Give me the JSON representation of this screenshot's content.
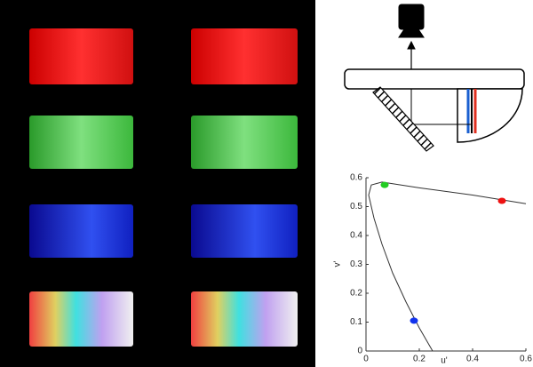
{
  "chart_data": {
    "type": "scatter",
    "x_label": "u'",
    "y_label": "v'",
    "xlim": [
      0,
      0.6
    ],
    "ylim": [
      0,
      0.6
    ],
    "xticks": [
      0,
      0.2,
      0.4,
      0.6
    ],
    "yticks": [
      0,
      0.1,
      0.2,
      0.3,
      0.4,
      0.5,
      0.6
    ],
    "series": [
      {
        "mode": "line",
        "color": "#333333",
        "x": [
          0.25,
          0.2,
          0.15,
          0.1,
          0.06,
          0.03,
          0.01,
          0.02,
          0.06,
          0.2,
          0.4,
          0.6
        ],
        "values": [
          0.0,
          0.08,
          0.17,
          0.27,
          0.37,
          0.46,
          0.54,
          0.575,
          0.585,
          0.565,
          0.54,
          0.51
        ]
      },
      {
        "mode": "markers",
        "color": "#22cc22",
        "x": [
          0.07
        ],
        "values": [
          0.575
        ]
      },
      {
        "mode": "markers",
        "color": "#ee1111",
        "x": [
          0.51
        ],
        "values": [
          0.52
        ]
      },
      {
        "mode": "markers",
        "color": "#1133ee",
        "x": [
          0.18
        ],
        "values": [
          0.105
        ]
      }
    ]
  }
}
